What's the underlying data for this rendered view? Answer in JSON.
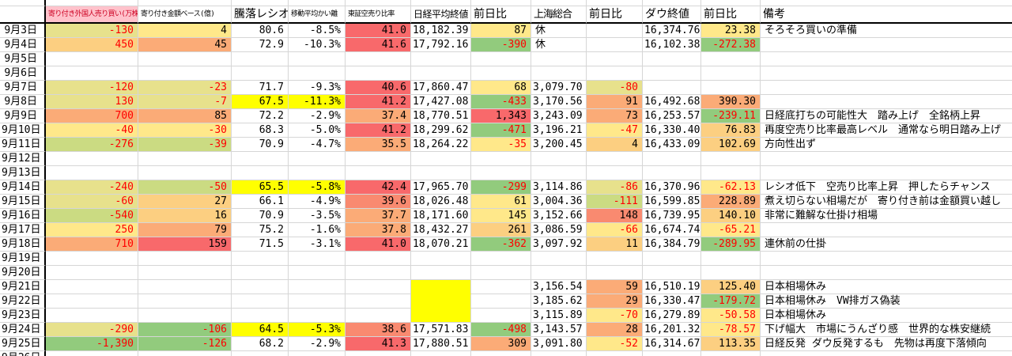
{
  "header": {
    "c1": "寄り付き外国人売り買い(万株)",
    "c2": "寄り付き金額ベース(億)",
    "ratio": "騰落レシオ",
    "kairi": "移動平均かい離",
    "short_ratio": "東証空売り比率",
    "nikkei": "日経平均終値",
    "nikkei_chg": "前日比",
    "shanghai": "上海総合",
    "shanghai_chg": "前日比",
    "dow": "ダウ終値",
    "dow_chg": "前日比",
    "remark": "備考"
  },
  "colors": {
    "negative_text": "#ff0000",
    "header_pink_bg": "#ffc2cb",
    "header_red_text": "#cc0022",
    "gridline": "#d6d6d6",
    "heavy_line": "#000000"
  },
  "palette": {
    "khaki": "#e7e18c",
    "yellow": "#ffe88a",
    "peach": "#fccf81",
    "orange": "#fbab77",
    "salmon": "#f98a70",
    "red": "#f8696b",
    "ygreen": "#cbdb82",
    "green": "#92cb7d",
    "byellow": "#ffff00"
  },
  "col_names": [
    "foreign-open-trade",
    "amount-base",
    "ratio",
    "ma-kairi",
    "short-sell-ratio",
    "nikkei-close",
    "nikkei-change",
    "shanghai-close",
    "shanghai-change",
    "dow-close",
    "dow-change",
    "remark"
  ],
  "rows": [
    {
      "date": "9月3日",
      "cells": [
        {
          "t": "-130",
          "bg": "khaki",
          "fg": "r"
        },
        {
          "t": "4",
          "bg": "yellow"
        },
        {
          "t": "80.6"
        },
        {
          "t": "-8.5%"
        },
        {
          "t": "41.0",
          "bg": "red"
        },
        {
          "t": "18,182.39"
        },
        {
          "t": "87",
          "bg": "yellow"
        },
        {
          "t": "休",
          "al": "l"
        },
        null,
        {
          "t": "16,374.76"
        },
        {
          "t": "23.38",
          "bg": "yellow"
        },
        {
          "t": "そろそろ買いの準備"
        }
      ]
    },
    {
      "date": "9月4日",
      "cells": [
        {
          "t": "450",
          "bg": "peach",
          "fg": "r"
        },
        {
          "t": "45",
          "bg": "orange"
        },
        {
          "t": "72.9"
        },
        {
          "t": "-10.3%"
        },
        {
          "t": "41.6",
          "bg": "red"
        },
        {
          "t": "17,792.16"
        },
        {
          "t": "-390",
          "bg": "green",
          "fg": "r"
        },
        {
          "t": "休",
          "al": "l"
        },
        null,
        {
          "t": "16,102.38"
        },
        {
          "t": "-272.38",
          "bg": "green",
          "fg": "r"
        },
        null
      ]
    },
    {
      "date": "9月5日",
      "cells": [
        null,
        null,
        null,
        null,
        null,
        null,
        null,
        null,
        null,
        null,
        null,
        null
      ]
    },
    {
      "date": "9月6日",
      "cells": [
        null,
        null,
        null,
        null,
        null,
        null,
        null,
        null,
        null,
        null,
        null,
        null
      ]
    },
    {
      "date": "9月7日",
      "cells": [
        {
          "t": "-120",
          "bg": "khaki",
          "fg": "r"
        },
        {
          "t": "-23",
          "bg": "khaki",
          "fg": "r"
        },
        {
          "t": "71.7"
        },
        {
          "t": "-9.3%"
        },
        {
          "t": "40.6",
          "bg": "red"
        },
        {
          "t": "17,860.47"
        },
        {
          "t": "68",
          "bg": "yellow"
        },
        {
          "t": "3,079.70"
        },
        {
          "t": "-80",
          "bg": "khaki",
          "fg": "r"
        },
        null,
        null,
        null
      ]
    },
    {
      "date": "9月8日",
      "cells": [
        {
          "t": "130",
          "bg": "khaki",
          "fg": "r"
        },
        {
          "t": "-7",
          "bg": "khaki",
          "fg": "r"
        },
        {
          "t": "67.5",
          "bg": "byellow"
        },
        {
          "t": "-11.3%",
          "bg": "byellow"
        },
        {
          "t": "41.2",
          "bg": "red"
        },
        {
          "t": "17,427.08"
        },
        {
          "t": "-433",
          "bg": "green",
          "fg": "r"
        },
        {
          "t": "3,170.56"
        },
        {
          "t": "91",
          "bg": "orange"
        },
        {
          "t": "16,492.68"
        },
        {
          "t": "390.30",
          "bg": "orange"
        },
        null
      ]
    },
    {
      "date": "9月9日",
      "cells": [
        {
          "t": "700",
          "bg": "orange",
          "fg": "r"
        },
        {
          "t": "85",
          "bg": "orange"
        },
        {
          "t": "72.2"
        },
        {
          "t": "-2.9%"
        },
        {
          "t": "37.4",
          "bg": "orange"
        },
        {
          "t": "18,770.51"
        },
        {
          "t": "1,343",
          "bg": "red"
        },
        {
          "t": "3,243.09"
        },
        {
          "t": "73",
          "bg": "orange"
        },
        {
          "t": "16,253.57"
        },
        {
          "t": "-239.11",
          "bg": "green",
          "fg": "r"
        },
        {
          "t": "日経底打ちの可能性大　踏み上げ　全銘柄上昇"
        }
      ]
    },
    {
      "date": "9月10日",
      "cells": [
        {
          "t": "-40",
          "bg": "yellow",
          "fg": "r"
        },
        {
          "t": "-30",
          "bg": "yellow",
          "fg": "r"
        },
        {
          "t": "68.3"
        },
        {
          "t": "-5.0%"
        },
        {
          "t": "41.2",
          "bg": "red"
        },
        {
          "t": "18,299.62"
        },
        {
          "t": "-471",
          "bg": "green",
          "fg": "r"
        },
        {
          "t": "3,196.21"
        },
        {
          "t": "-47",
          "bg": "yellow",
          "fg": "r"
        },
        {
          "t": "16,330.40"
        },
        {
          "t": "76.83",
          "bg": "peach"
        },
        {
          "t": "再度空売り比率最高レベル　通常なら明日踏み上げ"
        }
      ]
    },
    {
      "date": "9月11日",
      "cells": [
        {
          "t": "-276",
          "bg": "ygreen",
          "fg": "r"
        },
        {
          "t": "-39",
          "bg": "ygreen",
          "fg": "r"
        },
        {
          "t": "70.9"
        },
        {
          "t": "-4.7%"
        },
        {
          "t": "35.5",
          "bg": "orange"
        },
        {
          "t": "18,264.22"
        },
        {
          "t": "-35",
          "bg": "yellow",
          "fg": "r"
        },
        {
          "t": "3,200.45"
        },
        {
          "t": "4",
          "bg": "peach"
        },
        {
          "t": "16,433.09"
        },
        {
          "t": "102.69",
          "bg": "peach"
        },
        {
          "t": "方向性出ず"
        }
      ]
    },
    {
      "date": "9月12日",
      "cells": [
        null,
        null,
        null,
        null,
        null,
        null,
        null,
        null,
        null,
        null,
        null,
        null
      ]
    },
    {
      "date": "9月13日",
      "cells": [
        null,
        null,
        null,
        null,
        null,
        null,
        null,
        null,
        null,
        null,
        null,
        null
      ]
    },
    {
      "date": "9月14日",
      "cells": [
        {
          "t": "-240",
          "bg": "khaki",
          "fg": "r"
        },
        {
          "t": "-50",
          "bg": "ygreen",
          "fg": "r"
        },
        {
          "t": "65.5",
          "bg": "byellow"
        },
        {
          "t": "-5.8%",
          "bg": "byellow"
        },
        {
          "t": "42.4",
          "bg": "red"
        },
        {
          "t": "17,965.70"
        },
        {
          "t": "-299",
          "bg": "green",
          "fg": "r"
        },
        {
          "t": "3,114.86"
        },
        {
          "t": "-86",
          "bg": "khaki",
          "fg": "r"
        },
        {
          "t": "16,370.96"
        },
        {
          "t": "-62.13",
          "bg": "yellow",
          "fg": "r"
        },
        {
          "t": "レシオ低下　空売り比率上昇　押したらチャンス"
        }
      ]
    },
    {
      "date": "9月15日",
      "cells": [
        {
          "t": "-60",
          "bg": "khaki",
          "fg": "r"
        },
        {
          "t": "27",
          "bg": "peach"
        },
        {
          "t": "66.1"
        },
        {
          "t": "-4.9%"
        },
        {
          "t": "39.6",
          "bg": "salmon"
        },
        {
          "t": "18,026.48"
        },
        {
          "t": "61",
          "bg": "yellow"
        },
        {
          "t": "3,004.36"
        },
        {
          "t": "-111",
          "bg": "ygreen",
          "fg": "r"
        },
        {
          "t": "16,599.85"
        },
        {
          "t": "228.89",
          "bg": "orange"
        },
        {
          "t": "煮え切らない相場だが　寄り付き前は金額買い越し"
        }
      ]
    },
    {
      "date": "9月16日",
      "cells": [
        {
          "t": "-540",
          "bg": "ygreen",
          "fg": "r"
        },
        {
          "t": "16",
          "bg": "peach"
        },
        {
          "t": "70.9"
        },
        {
          "t": "-3.5%"
        },
        {
          "t": "37.7",
          "bg": "orange"
        },
        {
          "t": "18,171.60"
        },
        {
          "t": "145",
          "bg": "yellow"
        },
        {
          "t": "3,152.66"
        },
        {
          "t": "148",
          "bg": "salmon"
        },
        {
          "t": "16,739.95"
        },
        {
          "t": "140.10",
          "bg": "peach"
        },
        {
          "t": "非常に難解な仕掛け相場"
        }
      ]
    },
    {
      "date": "9月17日",
      "cells": [
        {
          "t": "250",
          "bg": "yellow",
          "fg": "r"
        },
        {
          "t": "79",
          "bg": "orange"
        },
        {
          "t": "75.2"
        },
        {
          "t": "-1.6%"
        },
        {
          "t": "37.8",
          "bg": "orange"
        },
        {
          "t": "18,432.27"
        },
        {
          "t": "261",
          "bg": "peach"
        },
        {
          "t": "3,086.59"
        },
        {
          "t": "-66",
          "bg": "yellow",
          "fg": "r"
        },
        {
          "t": "16,674.74"
        },
        {
          "t": "-65.21",
          "bg": "yellow",
          "fg": "r"
        },
        null
      ]
    },
    {
      "date": "9月18日",
      "cells": [
        {
          "t": "710",
          "bg": "orange",
          "fg": "r"
        },
        {
          "t": "159",
          "bg": "red"
        },
        {
          "t": "71.5"
        },
        {
          "t": "-3.1%"
        },
        {
          "t": "41.0",
          "bg": "red"
        },
        {
          "t": "18,070.21"
        },
        {
          "t": "-362",
          "bg": "green",
          "fg": "r"
        },
        {
          "t": "3,097.92"
        },
        {
          "t": "11",
          "bg": "peach"
        },
        {
          "t": "16,384.79"
        },
        {
          "t": "-289.95",
          "bg": "green",
          "fg": "r"
        },
        {
          "t": "連休前の仕掛"
        }
      ]
    },
    {
      "date": "9月19日",
      "cells": [
        null,
        null,
        null,
        null,
        null,
        null,
        null,
        null,
        null,
        null,
        null,
        null
      ]
    },
    {
      "date": "9月20日",
      "cells": [
        null,
        null,
        null,
        null,
        null,
        null,
        null,
        null,
        null,
        null,
        null,
        null
      ]
    },
    {
      "date": "9月21日",
      "cells": [
        null,
        null,
        null,
        null,
        null,
        {
          "t": "",
          "bg": "byellow",
          "nb": 1
        },
        null,
        {
          "t": "3,156.54"
        },
        {
          "t": "59",
          "bg": "orange"
        },
        {
          "t": "16,510.19"
        },
        {
          "t": "125.40",
          "bg": "peach"
        },
        {
          "t": "日本相場休み"
        }
      ]
    },
    {
      "date": "9月22日",
      "cells": [
        null,
        null,
        null,
        null,
        null,
        {
          "t": "",
          "bg": "byellow",
          "nb": 1
        },
        null,
        {
          "t": "3,185.62"
        },
        {
          "t": "29",
          "bg": "orange"
        },
        {
          "t": "16,330.47"
        },
        {
          "t": "-179.72",
          "bg": "green",
          "fg": "r"
        },
        {
          "t": "日本相場休み　VW排ガス偽装"
        }
      ]
    },
    {
      "date": "9月23日",
      "cells": [
        null,
        null,
        null,
        null,
        null,
        {
          "t": "",
          "bg": "byellow"
        },
        null,
        {
          "t": "3,115.89"
        },
        {
          "t": "-70",
          "bg": "yellow",
          "fg": "r"
        },
        {
          "t": "16,279.89"
        },
        {
          "t": "-50.58",
          "bg": "yellow",
          "fg": "r"
        },
        {
          "t": "日本相場休み"
        }
      ]
    },
    {
      "date": "9月24日",
      "cells": [
        {
          "t": "-290",
          "bg": "khaki",
          "fg": "r"
        },
        {
          "t": "-106",
          "bg": "green",
          "fg": "r"
        },
        {
          "t": "64.5",
          "bg": "byellow"
        },
        {
          "t": "-5.3%",
          "bg": "byellow"
        },
        {
          "t": "38.6",
          "bg": "salmon"
        },
        {
          "t": "17,571.83"
        },
        {
          "t": "-498",
          "bg": "green",
          "fg": "r"
        },
        {
          "t": "3,143.57"
        },
        {
          "t": "28",
          "bg": "orange"
        },
        {
          "t": "16,201.32"
        },
        {
          "t": "-78.57",
          "bg": "yellow",
          "fg": "r"
        },
        {
          "t": "下げ幅大　市場にうんざり感　世界的な株安継続"
        }
      ]
    },
    {
      "date": "9月25日",
      "cells": [
        {
          "t": "-1,390",
          "bg": "green",
          "fg": "r"
        },
        {
          "t": "-126",
          "bg": "green",
          "fg": "r"
        },
        {
          "t": "68.2"
        },
        {
          "t": "-2.9%"
        },
        {
          "t": "41.3",
          "bg": "red"
        },
        {
          "t": "17,880.51"
        },
        {
          "t": "309",
          "bg": "orange"
        },
        {
          "t": "3,091.80"
        },
        {
          "t": "-52",
          "bg": "yellow",
          "fg": "r"
        },
        {
          "t": "16,314.67"
        },
        {
          "t": "113.35",
          "bg": "peach"
        },
        {
          "t": "日経反発 ダウ反発するも　先物は再度下落傾向"
        }
      ]
    }
  ],
  "partial_row": {
    "date": "9月26日"
  }
}
